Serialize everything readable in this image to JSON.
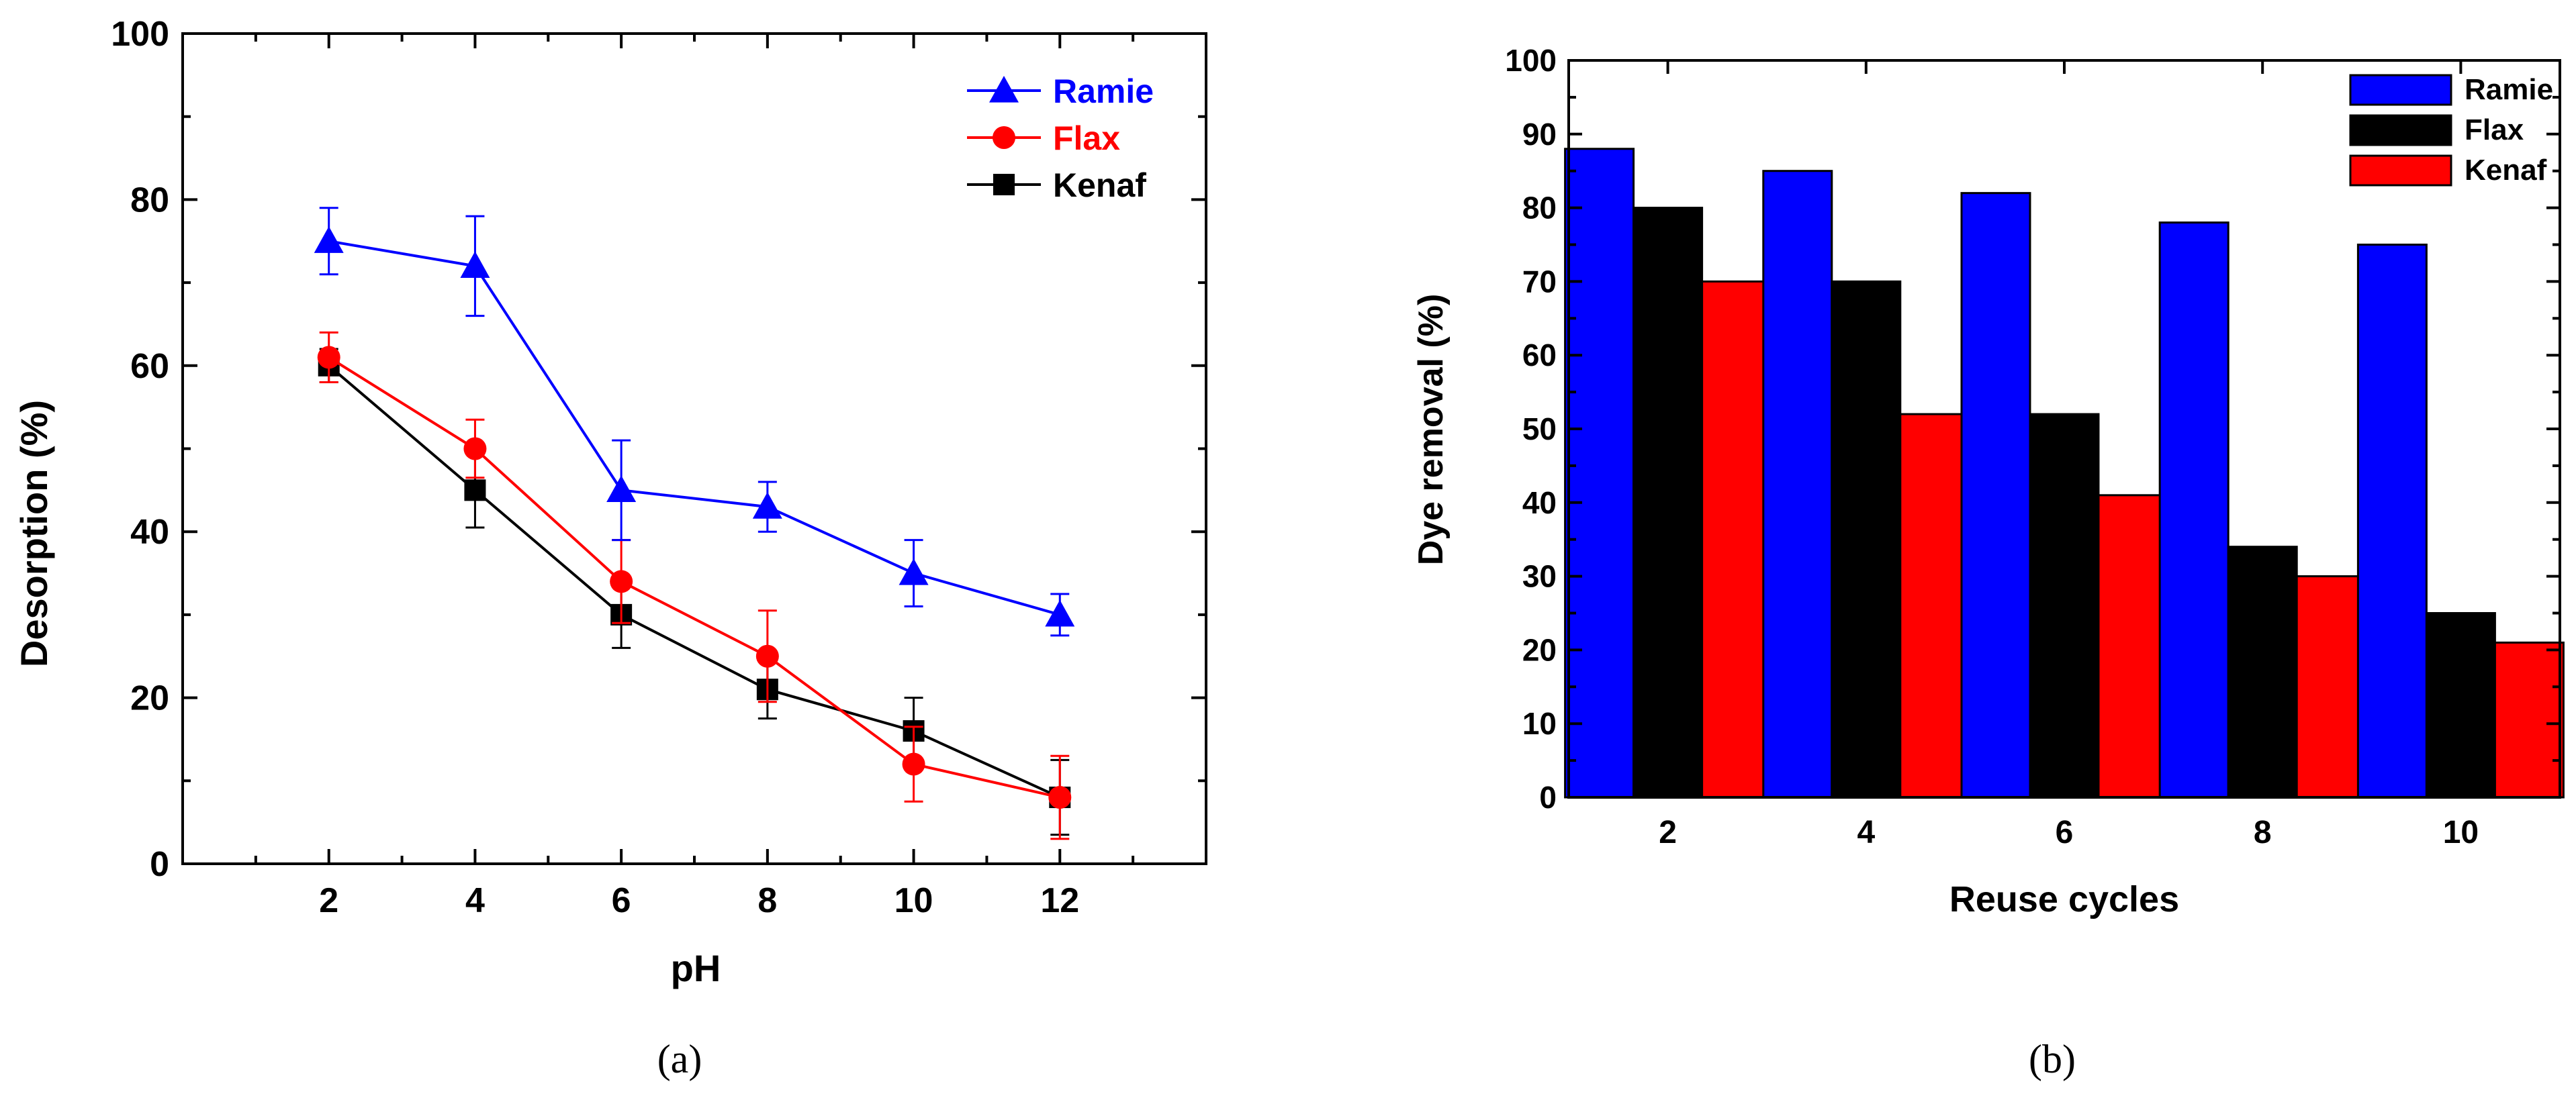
{
  "colors": {
    "ramie": "#0000ff",
    "flax": "#ff0000",
    "kenaf": "#000000",
    "axis": "#000000"
  },
  "chart_data": [
    {
      "id": "a",
      "type": "line",
      "caption": "(a)",
      "title": "",
      "xlabel": "pH",
      "ylabel": "Desorption (%)",
      "x": [
        2,
        4,
        6,
        8,
        10,
        12
      ],
      "xlim": [
        0,
        14
      ],
      "ylim": [
        0,
        100
      ],
      "xticks": [
        2,
        4,
        6,
        8,
        10,
        12
      ],
      "yticks": [
        0,
        20,
        40,
        60,
        80,
        100
      ],
      "grid": false,
      "legend_position": "top-right",
      "series": [
        {
          "name": "Ramie",
          "color": "#0000ff",
          "marker": "triangle",
          "values": [
            75,
            72,
            45,
            43,
            35,
            30
          ],
          "errors": [
            4,
            6,
            6,
            3,
            4,
            2.5
          ]
        },
        {
          "name": "Flax",
          "color": "#ff0000",
          "marker": "circle",
          "values": [
            61,
            50,
            34,
            25,
            12,
            8
          ],
          "errors": [
            3,
            3.5,
            5,
            5.5,
            4.5,
            5
          ]
        },
        {
          "name": "Kenaf",
          "color": "#000000",
          "marker": "square",
          "values": [
            60,
            45,
            30,
            21,
            16,
            8
          ],
          "errors": [
            2,
            4.5,
            4,
            3.5,
            4,
            4.5
          ]
        }
      ]
    },
    {
      "id": "b",
      "type": "bar",
      "caption": "(b)",
      "title": "",
      "xlabel": "Reuse cycles",
      "ylabel": "Dye removal (%)",
      "categories": [
        "2",
        "4",
        "6",
        "8",
        "10"
      ],
      "ylim": [
        0,
        100
      ],
      "yticks": [
        0,
        10,
        20,
        30,
        40,
        50,
        60,
        70,
        80,
        90,
        100
      ],
      "grid": false,
      "legend_position": "top-right",
      "series": [
        {
          "name": "Ramie",
          "color": "#0000ff",
          "values": [
            88,
            85,
            82,
            78,
            75
          ]
        },
        {
          "name": "Flax",
          "color": "#000000",
          "values": [
            80,
            70,
            52,
            34,
            25
          ]
        },
        {
          "name": "Kenaf",
          "color": "#ff0000",
          "values": [
            70,
            52,
            41,
            30,
            21
          ]
        }
      ]
    }
  ]
}
